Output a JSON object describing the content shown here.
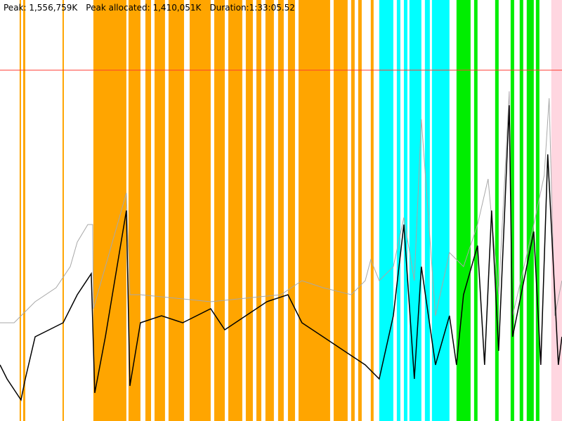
{
  "header": {
    "peak": "Peak: 1,556,759K",
    "peak_allocated": "Peak allocated: 1,410,051K",
    "duration": "Duration:1:33:05.52"
  },
  "chart_data": {
    "type": "line",
    "title": "",
    "xlabel": "",
    "ylabel": "",
    "x_unit": "seconds",
    "y_unit": "K",
    "xlim": [
      0,
      5585.52
    ],
    "ylim": [
      0,
      1868000
    ],
    "grid": false,
    "peak_line": {
      "value": 1556759,
      "color": "#ff3b30"
    },
    "colors": {
      "used": "#000000",
      "heap": "#a8a8a8",
      "band_orange": "#ffa500",
      "band_cyan": "#00ffff",
      "band_green": "#00ee00",
      "band_pink": "#ffd6e0"
    },
    "bands": [
      {
        "color": "band_orange",
        "ranges": [
          [
            195,
            209
          ],
          [
            230,
            251
          ],
          [
            621,
            635
          ],
          [
            928,
            1256
          ],
          [
            1277,
            1396
          ],
          [
            1445,
            1501
          ],
          [
            1536,
            1640
          ],
          [
            1675,
            1829
          ],
          [
            1885,
            2094
          ],
          [
            2129,
            2234
          ],
          [
            2269,
            2408
          ],
          [
            2443,
            2513
          ],
          [
            2548,
            2597
          ],
          [
            2638,
            2722
          ],
          [
            2764,
            2820
          ],
          [
            2862,
            2932
          ],
          [
            2967,
            3281
          ],
          [
            3316,
            3455
          ],
          [
            3490,
            3525
          ],
          [
            3560,
            3595
          ],
          [
            3685,
            3713
          ]
        ]
      },
      {
        "color": "band_cyan",
        "ranges": [
          [
            3769,
            3909
          ],
          [
            3944,
            3979
          ],
          [
            4014,
            4049
          ],
          [
            4069,
            4188
          ],
          [
            4223,
            4272
          ],
          [
            4293,
            4467
          ]
        ]
      },
      {
        "color": "band_green",
        "ranges": [
          [
            4537,
            4677
          ],
          [
            4712,
            4746
          ],
          [
            4921,
            4956
          ],
          [
            5075,
            5110
          ],
          [
            5165,
            5200
          ],
          [
            5235,
            5305
          ],
          [
            5326,
            5361
          ]
        ]
      },
      {
        "color": "band_pink",
        "ranges": [
          [
            5479,
            5585
          ]
        ]
      }
    ],
    "series": [
      {
        "color": "heap",
        "x": [
          0,
          140,
          349,
          558,
          698,
          768,
          873,
          921,
          928,
          1256,
          1291,
          1396,
          2094,
          2792,
          3001,
          3211,
          3490,
          3630,
          3685,
          3769,
          3909,
          4014,
          4118,
          4188,
          4328,
          4467,
          4607,
          4746,
          4851,
          4956,
          5061,
          5095,
          5305,
          5409,
          5458,
          5514,
          5585
        ],
        "y": [
          435820,
          435820,
          529210,
          591470,
          684860,
          793815,
          871640,
          871640,
          498080,
          1011725,
          560340,
          560340,
          529210,
          560340,
          622600,
          591470,
          560340,
          622600,
          715990,
          622600,
          684860,
          902770,
          622600,
          1338590,
          466950,
          747120,
          684860,
          871640,
          1073985,
          560340,
          1463110,
          466950,
          871640,
          1089550,
          1431980,
          466950,
          622600
        ]
      },
      {
        "color": "used",
        "x": [
          0,
          70,
          209,
          251,
          349,
          489,
          628,
          768,
          907,
          942,
          1047,
          1256,
          1291,
          1396,
          1605,
          1815,
          2094,
          2234,
          2443,
          2652,
          2862,
          3001,
          3211,
          3420,
          3630,
          3769,
          3909,
          4014,
          4118,
          4188,
          4328,
          4467,
          4537,
          4607,
          4746,
          4816,
          4886,
          4956,
          5061,
          5095,
          5305,
          5375,
          5444,
          5549,
          5585
        ],
        "y": [
          249040,
          186780,
          93390,
          186780,
          373560,
          404690,
          435820,
          560340,
          653730,
          124520,
          373560,
          933900,
          155650,
          435820,
          466950,
          435820,
          498080,
          404690,
          466950,
          529210,
          560340,
          435820,
          373560,
          311300,
          249040,
          186780,
          466950,
          871640,
          186780,
          684860,
          249040,
          466950,
          249040,
          560340,
          778250,
          249040,
          933900,
          311300,
          1400850,
          373560,
          840510,
          249040,
          1182940,
          249040,
          373560
        ]
      }
    ]
  }
}
